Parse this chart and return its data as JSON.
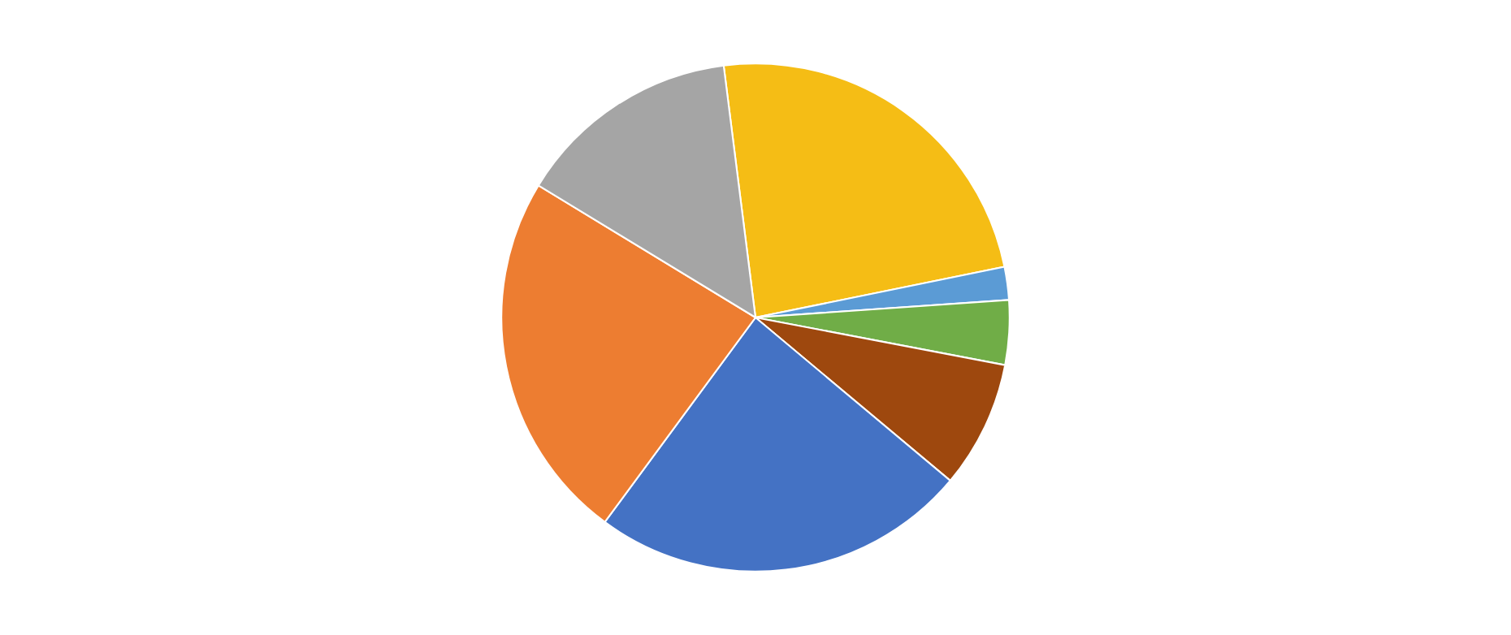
{
  "chart_data": {
    "type": "pie",
    "categories": [
      null,
      null,
      null,
      null,
      null,
      null,
      null
    ],
    "values": [
      23.8,
      2.1,
      4.1,
      8.1,
      24.0,
      23.6,
      14.3
    ],
    "colors": [
      "#f5bd15",
      "#5b9bd5",
      "#70ad47",
      "#9e480e",
      "#4472c4",
      "#ed7d31",
      "#a5a5a5"
    ]
  }
}
